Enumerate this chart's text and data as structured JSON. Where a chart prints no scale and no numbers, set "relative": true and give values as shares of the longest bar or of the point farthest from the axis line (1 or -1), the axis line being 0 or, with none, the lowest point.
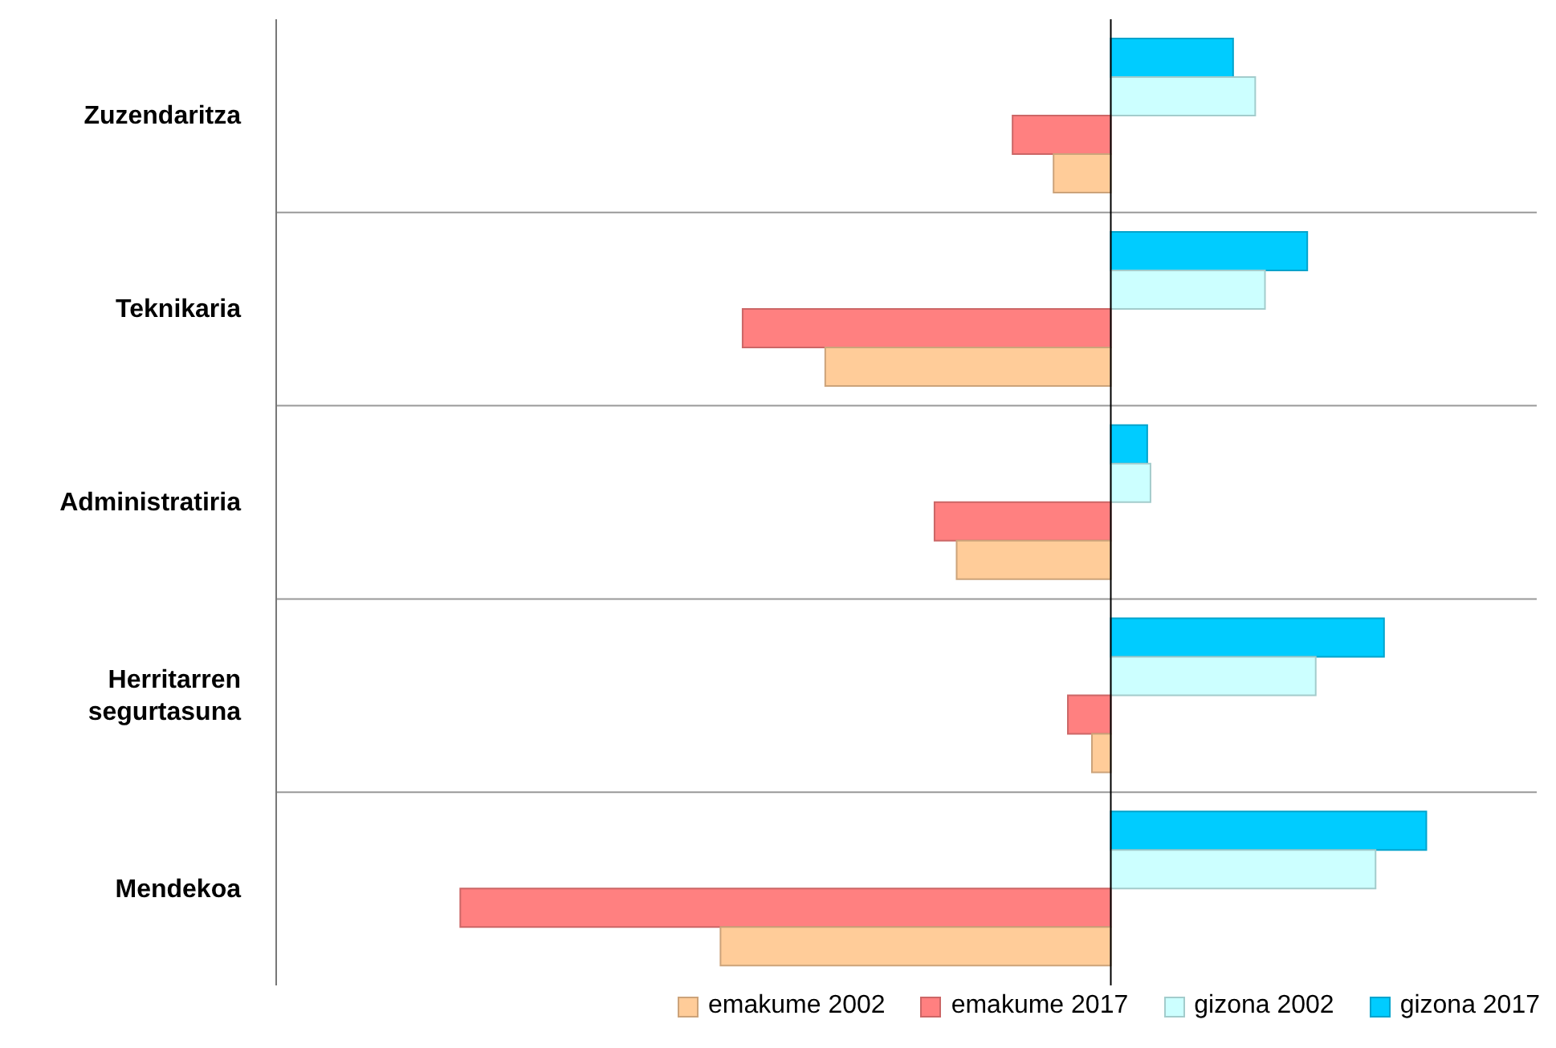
{
  "chart_data": {
    "type": "bar",
    "orientation": "horizontal",
    "relative": true,
    "grid": "y",
    "legend": "bottom",
    "categories": [
      "Zuzendaritza",
      "Teknikaria",
      "Administratiria",
      "Herritarren segurtasuna",
      "Mendekoa"
    ],
    "series": [
      {
        "name": "emakume 2002",
        "color": "#ffcc99",
        "values": [
          -0.088,
          -0.439,
          -0.237,
          -0.029,
          -0.6
        ]
      },
      {
        "name": "emakume 2017",
        "color": "#ff8080",
        "values": [
          -0.151,
          -0.566,
          -0.271,
          -0.066,
          -1
        ]
      },
      {
        "name": "gizona 2002",
        "color": "#ccffff",
        "values": [
          0.222,
          0.237,
          0.061,
          0.315,
          0.407
        ]
      },
      {
        "name": "gizona 2017",
        "color": "#00ccff",
        "values": [
          0.188,
          0.302,
          0.056,
          0.42,
          0.485
        ]
      }
    ]
  }
}
